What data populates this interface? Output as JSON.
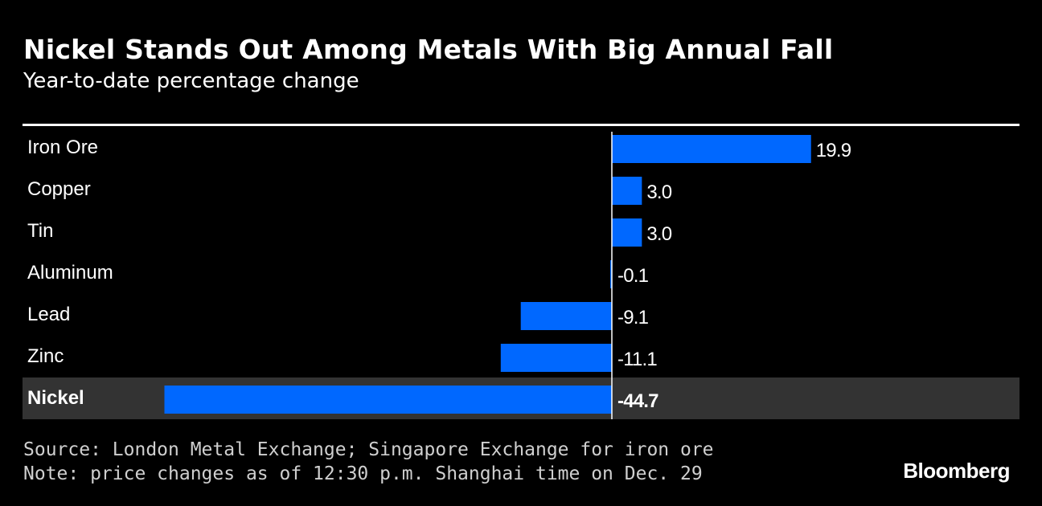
{
  "header": {
    "title": "Nickel Stands Out Among Metals With Big Annual Fall",
    "subtitle": "Year-to-date percentage change"
  },
  "chart_data": {
    "type": "bar",
    "orientation": "horizontal",
    "title": "Nickel Stands Out Among Metals With Big Annual Fall",
    "subtitle": "Year-to-date percentage change",
    "categories": [
      "Iron Ore",
      "Copper",
      "Tin",
      "Aluminum",
      "Lead",
      "Zinc",
      "Nickel"
    ],
    "values": [
      19.9,
      3.0,
      3.0,
      -0.1,
      -9.1,
      -11.1,
      -44.7
    ],
    "value_labels": [
      "19.9",
      "3.0",
      "3.0",
      "-0.1",
      "-9.1",
      "-11.1",
      "-44.7"
    ],
    "highlighted_category": "Nickel",
    "xlim": [
      -44.7,
      19.9
    ],
    "grid": false,
    "legend": "none",
    "colors": {
      "bar": "#0068ff",
      "highlight_row": "#333333",
      "zero_line": "#ffffff",
      "background": "#000000"
    }
  },
  "footer": {
    "source": "Source: London Metal Exchange; Singapore Exchange for iron ore",
    "note": "Note: price changes as of 12:30 p.m. Shanghai time on Dec. 29",
    "logo": "Bloomberg"
  }
}
